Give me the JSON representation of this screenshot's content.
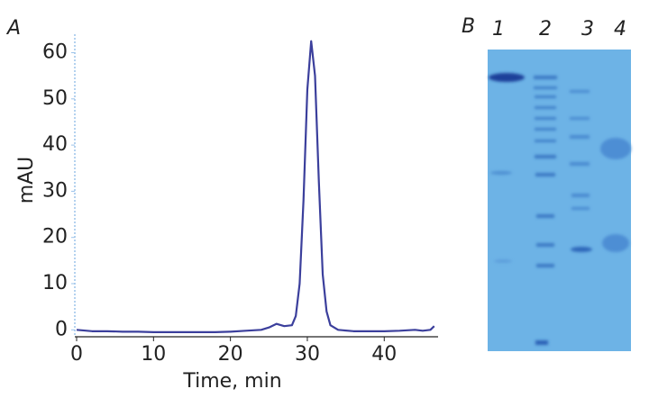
{
  "chart_data": {
    "type": "line",
    "x_label": "Time, min",
    "y_label": "mAU",
    "x": [
      0,
      2,
      4,
      6,
      8,
      10,
      12,
      14,
      16,
      18,
      20,
      22,
      24,
      25,
      26,
      27,
      28,
      28.5,
      29,
      29.5,
      30,
      30.5,
      31,
      31.5,
      32,
      32.5,
      33,
      34,
      36,
      38,
      40,
      42,
      44,
      45,
      46,
      46.5
    ],
    "series": [
      {
        "color": "#3b3f9c",
        "values": [
          0,
          -0.3,
          -0.3,
          -0.4,
          -0.4,
          -0.5,
          -0.5,
          -0.5,
          -0.5,
          -0.5,
          -0.4,
          -0.2,
          0,
          0.5,
          1.3,
          0.8,
          1,
          3,
          10,
          28,
          52,
          62.5,
          55,
          32,
          12,
          4,
          1,
          0,
          -0.3,
          -0.3,
          -0.3,
          -0.2,
          0,
          -0.2,
          0,
          0.8
        ]
      }
    ],
    "xlim": [
      0,
      47
    ],
    "ylim": [
      -1.5,
      64
    ],
    "xticks": [
      0,
      10,
      20,
      30,
      40
    ],
    "yticks": [
      0,
      10,
      20,
      30,
      40,
      50,
      60
    ]
  },
  "panels": {
    "chart_label": "A",
    "gel_label": "B",
    "lanes": [
      "1",
      "2",
      "3",
      "4"
    ]
  }
}
